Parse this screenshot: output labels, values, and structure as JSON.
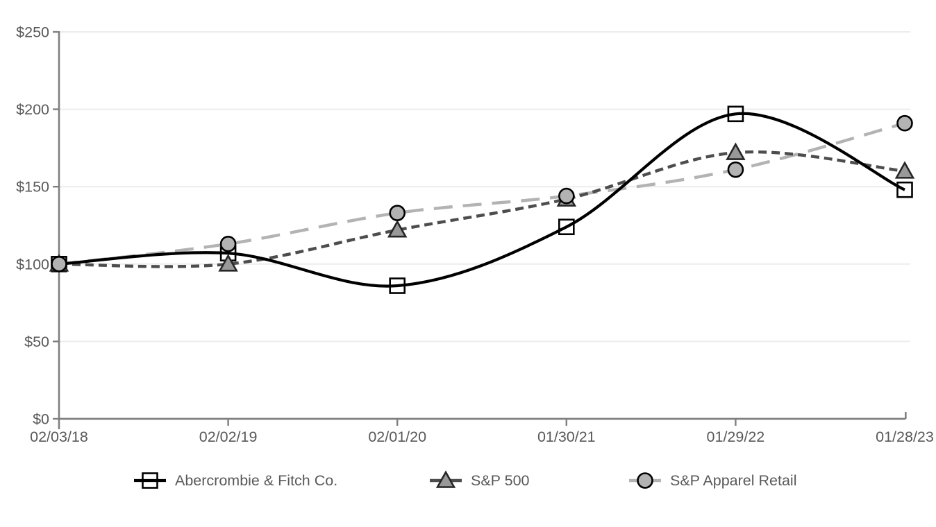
{
  "chart_data": {
    "type": "line",
    "title": "",
    "xlabel": "",
    "ylabel": "",
    "categories": [
      "02/03/18",
      "02/02/19",
      "02/01/20",
      "01/30/21",
      "01/29/22",
      "01/28/23"
    ],
    "y_tick_labels": [
      "$0",
      "$50",
      "$100",
      "$150",
      "$200",
      "$250"
    ],
    "y_tick_values": [
      0,
      50,
      100,
      150,
      200,
      250
    ],
    "ylim": [
      0,
      250
    ],
    "grid": "horizontal",
    "legend_position": "bottom",
    "series": [
      {
        "name": "Abercrombie & Fitch Co.",
        "values": [
          100,
          107,
          86,
          124,
          197,
          148
        ],
        "line_color": "#000000",
        "line_width": 4.2,
        "dasharray": "",
        "marker": "square",
        "marker_fill": "#ffffff",
        "marker_stroke": "#000000"
      },
      {
        "name": "S&P 500",
        "values": [
          100,
          100,
          122,
          142,
          172,
          160
        ],
        "line_color": "#4d4d4d",
        "line_width": 4.4,
        "dasharray": "12 7",
        "marker": "triangle",
        "marker_fill": "#999999",
        "marker_stroke": "#262626"
      },
      {
        "name": "S&P Apparel Retail",
        "values": [
          100,
          113,
          133,
          144,
          161,
          191
        ],
        "line_color": "#b3b3b3",
        "line_width": 4.4,
        "dasharray": "27 15",
        "marker": "circle",
        "marker_fill": "#b3b3b3",
        "marker_stroke": "#000000"
      }
    ],
    "colors": {
      "axis": "#7f7f7f",
      "grid": "#ececec",
      "text": "#595959",
      "background": "#ffffff"
    }
  }
}
